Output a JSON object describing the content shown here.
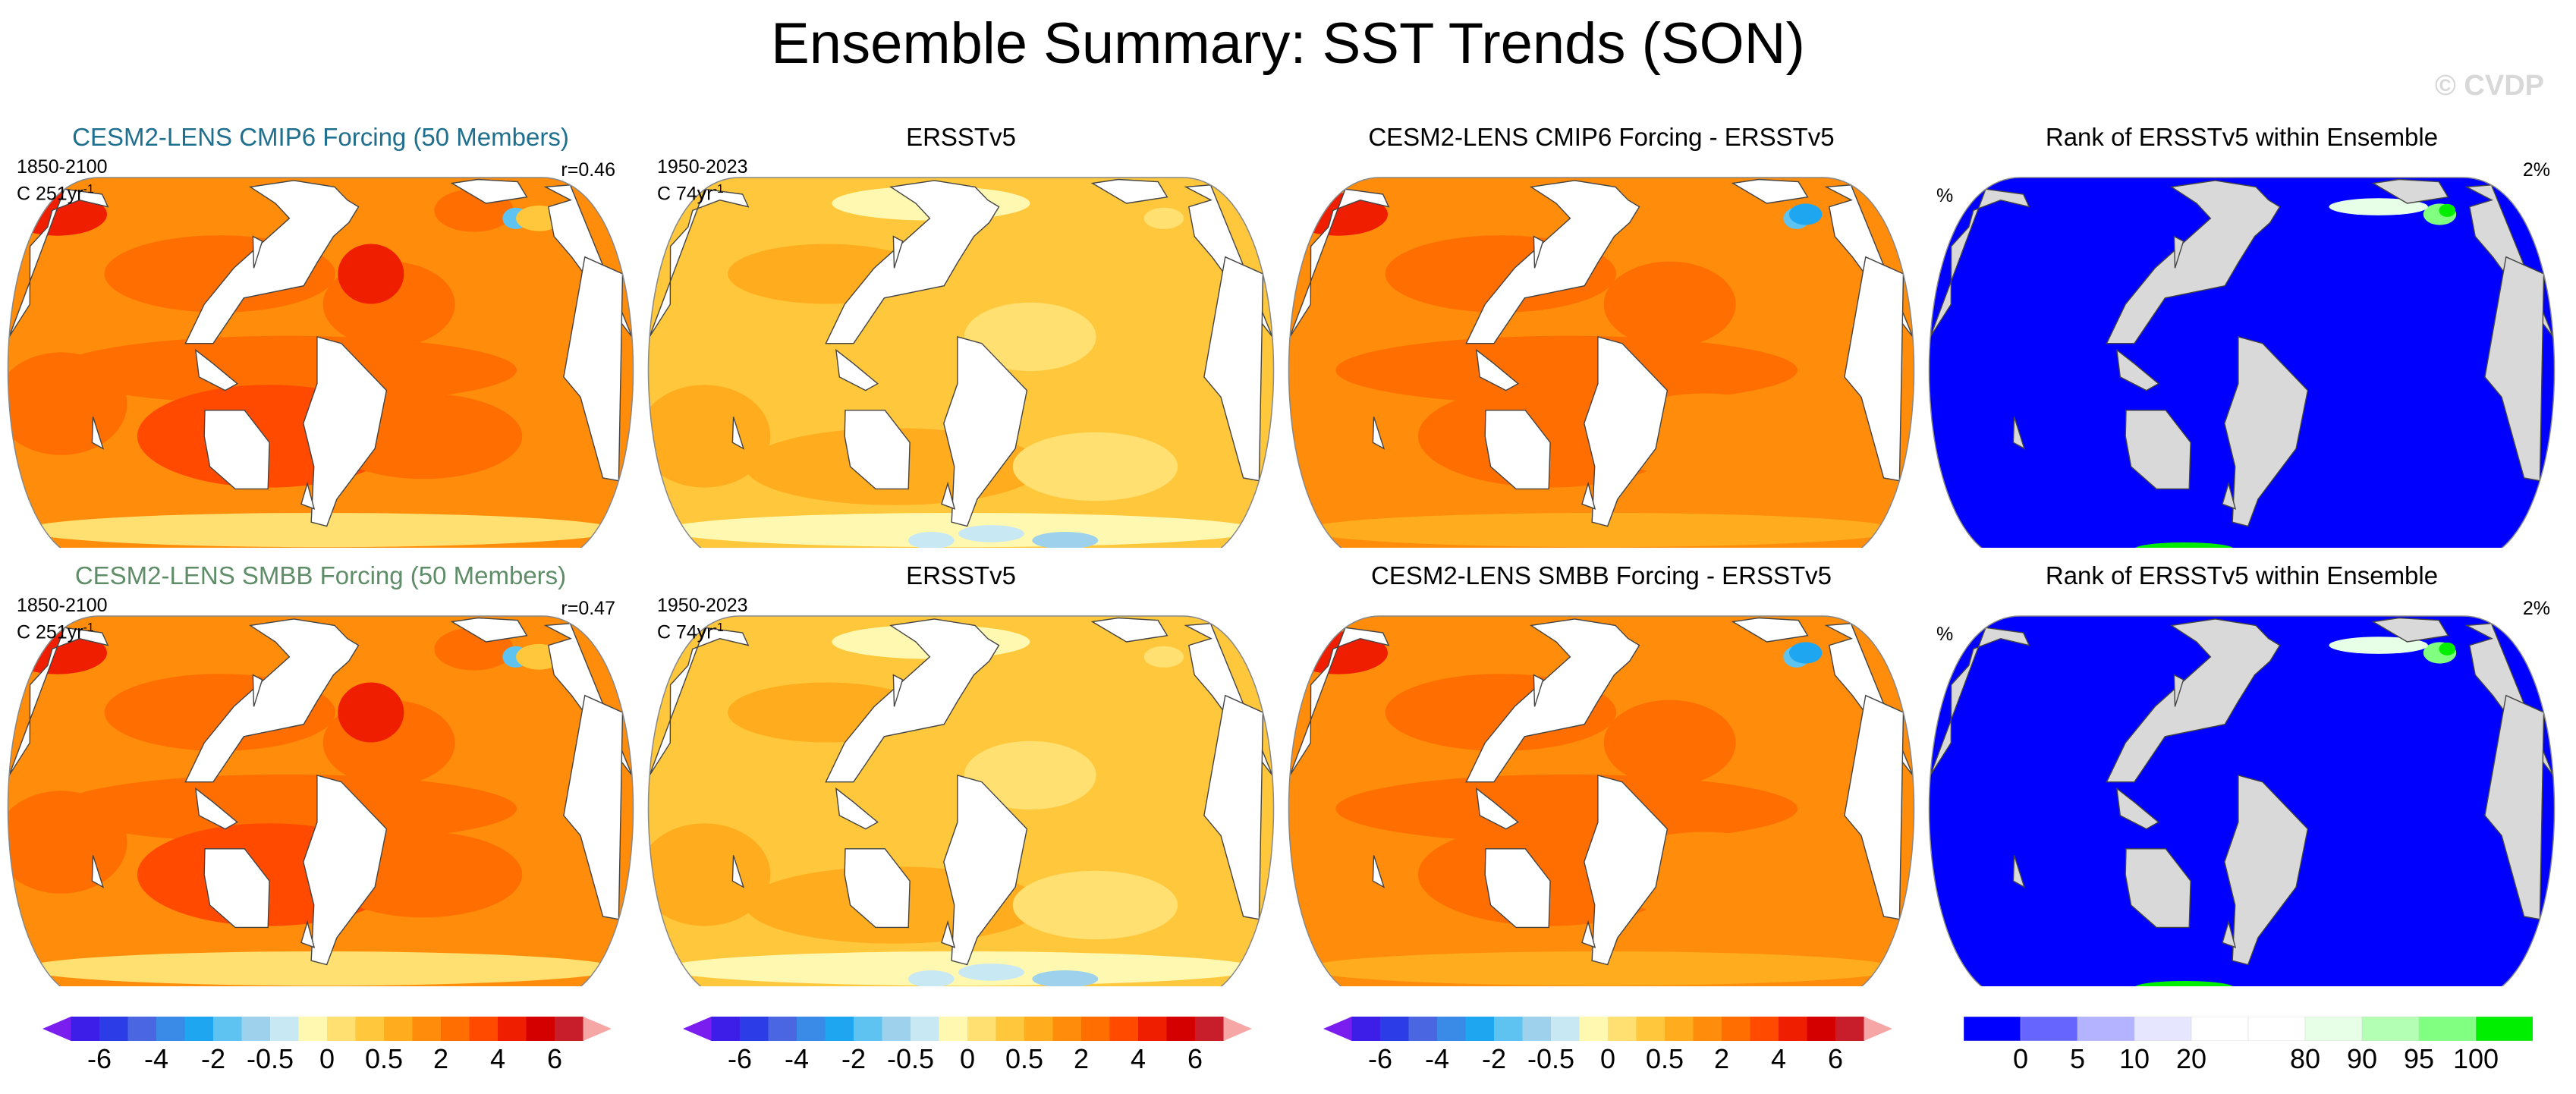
{
  "title": "Ensemble Summary: SST Trends (SON)",
  "watermark": "© CVDP",
  "colors": {
    "title_row1": "#1f6f8f",
    "title_row2": "#5e8d68",
    "watermark": "#d8d8d8",
    "land": "#ffffff",
    "land_rank": "#d9d9d9",
    "rank_main": "#0000ff"
  },
  "rows": [
    {
      "panels": [
        {
          "title": "CESM2-LENS CMIP6 Forcing (50 Members)",
          "info1": "1850-2100",
          "info2_pre": "C 251yr",
          "info2_sup": "-1",
          "corr": "r=0.46",
          "kind": "model"
        },
        {
          "title": "ERSSTv5",
          "info1": "1950-2023",
          "info2_pre": "C 74yr",
          "info2_sup": "-1",
          "kind": "obs"
        },
        {
          "title": "CESM2-LENS CMIP6 Forcing - ERSSTv5",
          "kind": "diff"
        },
        {
          "title": "Rank of ERSSTv5 within Ensemble",
          "pct_left": "%",
          "pct_right": "2%",
          "kind": "rank"
        }
      ]
    },
    {
      "panels": [
        {
          "title": "CESM2-LENS SMBB Forcing (50 Members)",
          "info1": "1850-2100",
          "info2_pre": "C 251yr",
          "info2_sup": "-1",
          "corr": "r=0.47",
          "kind": "model"
        },
        {
          "title": "ERSSTv5",
          "info1": "1950-2023",
          "info2_pre": "C 74yr",
          "info2_sup": "-1",
          "kind": "obs"
        },
        {
          "title": "CESM2-LENS SMBB Forcing - ERSSTv5",
          "kind": "diff"
        },
        {
          "title": "Rank of ERSSTv5 within Ensemble",
          "pct_left": "%",
          "pct_right": "2%",
          "kind": "rank"
        }
      ]
    }
  ],
  "trend_colorbar": {
    "colors": [
      "#7a1ef0",
      "#3c1ee8",
      "#2c3ce6",
      "#4a66e0",
      "#3a8ae8",
      "#1ea6f0",
      "#5ec3f0",
      "#9ed2ec",
      "#c8e8f4",
      "#fff8b0",
      "#ffe070",
      "#ffc83c",
      "#ffac1e",
      "#ff8c0a",
      "#ff6e00",
      "#ff4a00",
      "#f01e00",
      "#d40000",
      "#c81e2c",
      "#f7a6a6"
    ],
    "labels": [
      "-6",
      "-4",
      "-2",
      "-0.5",
      "0",
      "0.5",
      "2",
      "4",
      "6"
    ]
  },
  "rank_colorbar": {
    "colors": [
      "#0000ff",
      "#6666ff",
      "#b3b3ff",
      "#e6e6ff",
      "#ffffff",
      "#ffffff",
      "#e6ffe6",
      "#b3ffb3",
      "#80ff80",
      "#00ee00"
    ],
    "labels": [
      "0",
      "5",
      "10",
      "20",
      "80",
      "90",
      "95",
      "100"
    ]
  },
  "icons": {
    "colorbar_left": "triangle-left-icon",
    "colorbar_right": "triangle-right-icon"
  }
}
